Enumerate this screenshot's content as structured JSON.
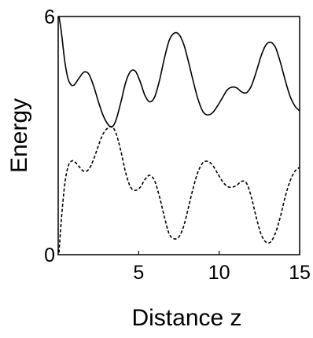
{
  "chart_data": {
    "type": "line",
    "title": "",
    "xlabel": "Distance z",
    "ylabel": "Energy",
    "xlim": [
      0,
      15
    ],
    "ylim": [
      0,
      6
    ],
    "x_ticks": [
      5,
      10,
      15
    ],
    "y_ticks": [
      0,
      6
    ],
    "grid": false,
    "legend": "none",
    "series": [
      {
        "style": "solid",
        "color": "#000000",
        "points": [
          [
            0.05,
            6.0
          ],
          [
            0.2,
            5.6
          ],
          [
            0.4,
            4.9
          ],
          [
            0.6,
            4.45
          ],
          [
            0.8,
            4.28
          ],
          [
            1.0,
            4.28
          ],
          [
            1.3,
            4.45
          ],
          [
            1.6,
            4.6
          ],
          [
            1.9,
            4.55
          ],
          [
            2.2,
            4.25
          ],
          [
            2.5,
            3.85
          ],
          [
            2.8,
            3.5
          ],
          [
            3.1,
            3.28
          ],
          [
            3.35,
            3.22
          ],
          [
            3.6,
            3.4
          ],
          [
            3.9,
            3.85
          ],
          [
            4.2,
            4.35
          ],
          [
            4.5,
            4.62
          ],
          [
            4.8,
            4.62
          ],
          [
            5.1,
            4.35
          ],
          [
            5.4,
            4.0
          ],
          [
            5.7,
            3.85
          ],
          [
            6.0,
            3.98
          ],
          [
            6.3,
            4.4
          ],
          [
            6.6,
            4.95
          ],
          [
            6.9,
            5.4
          ],
          [
            7.2,
            5.58
          ],
          [
            7.5,
            5.55
          ],
          [
            7.8,
            5.3
          ],
          [
            8.1,
            4.85
          ],
          [
            8.4,
            4.35
          ],
          [
            8.7,
            3.9
          ],
          [
            9.0,
            3.6
          ],
          [
            9.3,
            3.52
          ],
          [
            9.6,
            3.58
          ],
          [
            9.9,
            3.75
          ],
          [
            10.2,
            3.95
          ],
          [
            10.5,
            4.15
          ],
          [
            10.8,
            4.22
          ],
          [
            11.1,
            4.2
          ],
          [
            11.4,
            4.1
          ],
          [
            11.7,
            4.08
          ],
          [
            12.0,
            4.25
          ],
          [
            12.3,
            4.6
          ],
          [
            12.6,
            5.0
          ],
          [
            12.9,
            5.28
          ],
          [
            13.2,
            5.35
          ],
          [
            13.5,
            5.22
          ],
          [
            13.8,
            4.85
          ],
          [
            14.1,
            4.4
          ],
          [
            14.4,
            4.0
          ],
          [
            14.7,
            3.75
          ],
          [
            15.0,
            3.62
          ]
        ]
      },
      {
        "style": "dashed",
        "color": "#000000",
        "points": [
          [
            0.05,
            0.05
          ],
          [
            0.2,
            0.9
          ],
          [
            0.4,
            1.75
          ],
          [
            0.6,
            2.2
          ],
          [
            0.8,
            2.35
          ],
          [
            1.0,
            2.35
          ],
          [
            1.3,
            2.22
          ],
          [
            1.6,
            2.1
          ],
          [
            1.9,
            2.15
          ],
          [
            2.2,
            2.4
          ],
          [
            2.5,
            2.75
          ],
          [
            2.8,
            3.05
          ],
          [
            3.1,
            3.2
          ],
          [
            3.35,
            3.22
          ],
          [
            3.6,
            3.05
          ],
          [
            3.9,
            2.6
          ],
          [
            4.2,
            2.05
          ],
          [
            4.5,
            1.7
          ],
          [
            4.8,
            1.62
          ],
          [
            5.1,
            1.7
          ],
          [
            5.4,
            1.9
          ],
          [
            5.7,
            2.0
          ],
          [
            6.0,
            1.85
          ],
          [
            6.3,
            1.45
          ],
          [
            6.6,
            0.95
          ],
          [
            6.9,
            0.52
          ],
          [
            7.2,
            0.4
          ],
          [
            7.5,
            0.45
          ],
          [
            7.8,
            0.72
          ],
          [
            8.1,
            1.2
          ],
          [
            8.4,
            1.7
          ],
          [
            8.7,
            2.1
          ],
          [
            9.0,
            2.32
          ],
          [
            9.3,
            2.35
          ],
          [
            9.6,
            2.25
          ],
          [
            9.9,
            2.05
          ],
          [
            10.2,
            1.85
          ],
          [
            10.5,
            1.72
          ],
          [
            10.8,
            1.7
          ],
          [
            11.1,
            1.75
          ],
          [
            11.4,
            1.85
          ],
          [
            11.7,
            1.8
          ],
          [
            12.0,
            1.45
          ],
          [
            12.3,
            0.95
          ],
          [
            12.6,
            0.52
          ],
          [
            12.9,
            0.32
          ],
          [
            13.2,
            0.32
          ],
          [
            13.5,
            0.55
          ],
          [
            13.8,
            0.95
          ],
          [
            14.1,
            1.45
          ],
          [
            14.4,
            1.85
          ],
          [
            14.7,
            2.1
          ],
          [
            15.0,
            2.2
          ]
        ]
      }
    ]
  }
}
